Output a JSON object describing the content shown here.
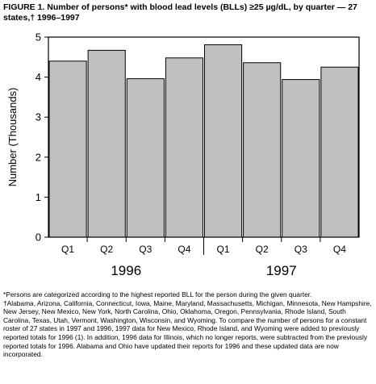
{
  "figure": {
    "title": "FIGURE 1. Number of persons* with blood lead levels (BLLs) ≥25 µg/dL, by quarter — 27 states,† 1996–1997"
  },
  "chart_data": {
    "type": "bar",
    "categories": [
      "Q1",
      "Q2",
      "Q3",
      "Q4",
      "Q1",
      "Q2",
      "Q3",
      "Q4"
    ],
    "groups": [
      "1996",
      "1997"
    ],
    "group_of_category": [
      0,
      0,
      0,
      0,
      1,
      1,
      1,
      1
    ],
    "values": [
      4.4,
      4.67,
      3.96,
      4.48,
      4.81,
      4.36,
      3.94,
      4.25
    ],
    "ylabel": "Number (Thousands)",
    "xlabel": "",
    "ylim": [
      0,
      5
    ],
    "yticks": [
      0,
      1,
      2,
      3,
      4,
      5
    ],
    "grid": false,
    "bar_color": "#c0c0c0"
  },
  "footnotes": [
    "*Persons are categorized according to the highest reported BLL for the person during the given quarter.",
    "†Alabama, Arizona, California, Connecticut, Iowa, Maine, Maryland, Massachusetts, Michigan, Minnesota, New Hampshire, New Jersey, New Mexico, New York, North Carolina, Ohio, Oklahoma, Oregon, Pennsylvania, Rhode Island, South Carolina, Texas, Utah, Vermont, Washington, Wisconsin, and Wyoming. To compare the number of persons for a constant roster of 27 states in 1997 and 1996, 1997 data for New Mexico, Rhode Island, and Wyoming were added to previously reported totals for 1996 (1). In addition, 1996 data for Illinois, which no longer reports, were subtracted from the previously reported totals for 1996. Alabama and Ohio have updated their reports for 1996 and these updated data are now incorporated."
  ]
}
